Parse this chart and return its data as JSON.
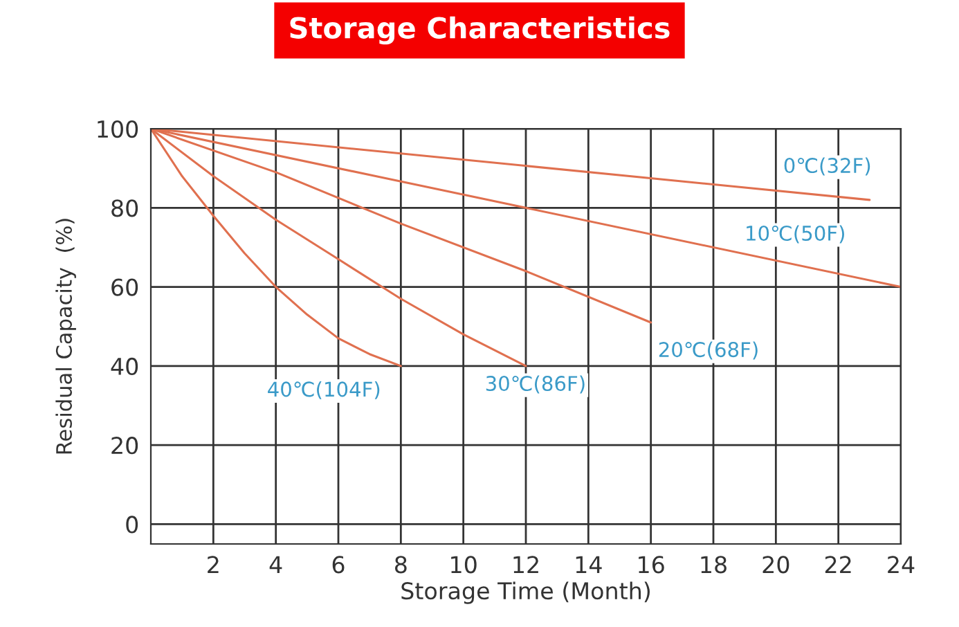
{
  "chart_data": {
    "type": "line",
    "title": "Storage Characteristics",
    "xlabel": "Storage Time (Month)",
    "ylabel": "Residual Capacity  (%)",
    "series": [
      {
        "name": "0℃(32F)",
        "color": "#e0704f",
        "x": [
          0,
          23
        ],
        "values": [
          100,
          82
        ]
      },
      {
        "name": "10℃(50F)",
        "color": "#e0704f",
        "x": [
          0,
          12,
          24
        ],
        "values": [
          100,
          80,
          60
        ]
      },
      {
        "name": "20℃(68F)",
        "color": "#e0704f",
        "x": [
          0,
          4,
          8,
          12,
          16
        ],
        "values": [
          100,
          89,
          76,
          64,
          51
        ]
      },
      {
        "name": "30℃(86F)",
        "color": "#e0704f",
        "x": [
          0,
          2,
          4,
          6,
          8,
          10,
          12
        ],
        "values": [
          100,
          88,
          77,
          67,
          57,
          48,
          40
        ]
      },
      {
        "name": "40℃(104F)",
        "color": "#e0704f",
        "x": [
          0,
          1,
          2,
          3,
          4,
          5,
          6,
          7,
          8
        ],
        "values": [
          100,
          88,
          78,
          68.5,
          60,
          53,
          47,
          43,
          40
        ]
      }
    ],
    "xlim": [
      0,
      24
    ],
    "xticks": [
      2,
      4,
      6,
      8,
      10,
      12,
      14,
      16,
      18,
      20,
      22,
      24
    ],
    "ylim": [
      -5,
      100
    ],
    "yticks": [
      0,
      20,
      40,
      60,
      80,
      100
    ],
    "grid": true,
    "marker": "none",
    "line_style": "solid"
  }
}
